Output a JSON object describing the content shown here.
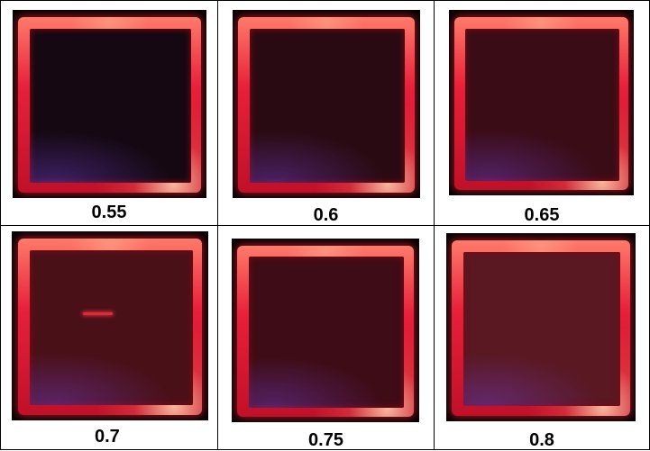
{
  "panels": [
    {
      "label": "0.55",
      "inner_color": "#150812",
      "streak": false
    },
    {
      "label": "0.6",
      "inner_color": "#2a0a12",
      "streak": false
    },
    {
      "label": "0.65",
      "inner_color": "#3a0c16",
      "streak": false
    },
    {
      "label": "0.7",
      "inner_color": "#4a1018",
      "streak": true
    },
    {
      "label": "0.75",
      "inner_color": "#3e0c16",
      "streak": false
    },
    {
      "label": "0.8",
      "inner_color": "#5a1822",
      "streak": false
    }
  ]
}
